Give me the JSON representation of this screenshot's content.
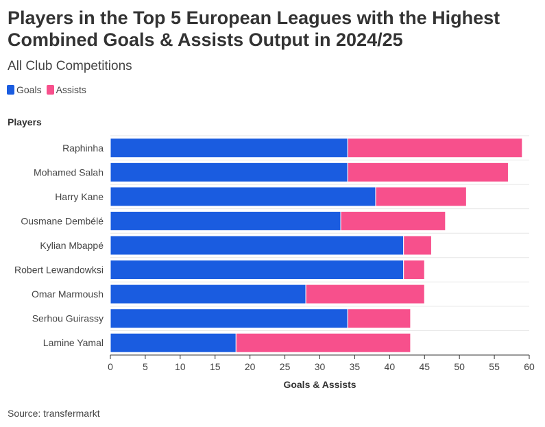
{
  "header": {
    "title": "Players in the Top 5 European Leagues with the Highest Combined Goals & Assists Output in 2024/25",
    "subtitle": "All Club Competitions"
  },
  "legend": {
    "goals_label": "Goals",
    "assists_label": "Assists"
  },
  "colors": {
    "goals": "#1a5ce0",
    "assists": "#f7508c",
    "grid": "#e6e6e6",
    "axis": "#333333"
  },
  "footer": {
    "source": "Source: transfermarkt"
  },
  "chart_data": {
    "type": "bar",
    "orientation": "horizontal",
    "stacked": true,
    "title": "Players in the Top 5 European Leagues with the Highest Combined Goals & Assists Output in 2024/25",
    "subtitle": "All Club Competitions",
    "ylabel": "Players",
    "xlabel": "Goals & Assists",
    "xlim": [
      0,
      60
    ],
    "xticks": [
      0,
      5,
      10,
      15,
      20,
      25,
      30,
      35,
      40,
      45,
      50,
      55,
      60
    ],
    "legend_position": "top-left",
    "categories": [
      "Raphinha",
      "Mohamed Salah",
      "Harry Kane",
      "Ousmane Dembélé",
      "Kylian Mbappé",
      "Robert Lewandowksi",
      "Omar Marmoush",
      "Serhou Guirassy",
      "Lamine Yamal"
    ],
    "series": [
      {
        "name": "Goals",
        "values": [
          34,
          34,
          38,
          33,
          42,
          42,
          28,
          34,
          18
        ]
      },
      {
        "name": "Assists",
        "values": [
          25,
          23,
          13,
          15,
          4,
          3,
          17,
          9,
          25
        ]
      }
    ]
  }
}
